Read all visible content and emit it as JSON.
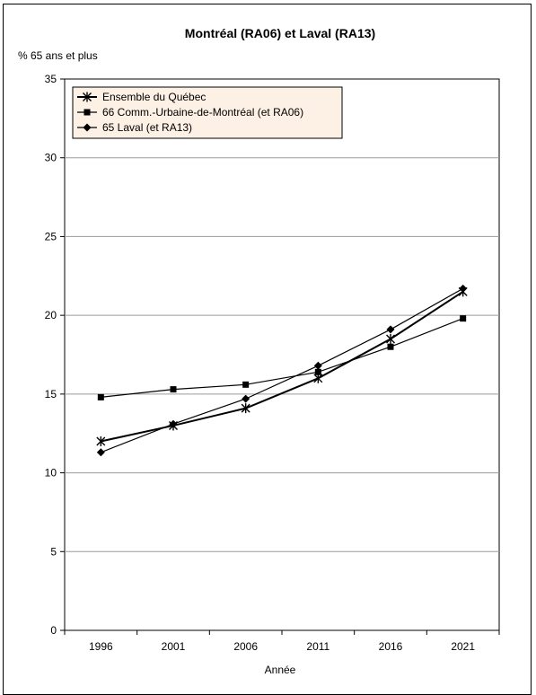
{
  "chart_data": {
    "type": "line",
    "title": "Montréal (RA06) et Laval (RA13)",
    "ylabel": "% 65 ans et plus",
    "xlabel": "Année",
    "categories": [
      "1996",
      "2001",
      "2006",
      "2011",
      "2016",
      "2021"
    ],
    "ylim": [
      0,
      35
    ],
    "yticks": [
      0,
      5,
      10,
      15,
      20,
      25,
      30,
      35
    ],
    "grid": true,
    "legend_position": "top-left",
    "series": [
      {
        "name": "Ensemble du Québec",
        "marker": "asterisk",
        "values": [
          12.0,
          13.0,
          14.1,
          16.0,
          18.5,
          21.5
        ]
      },
      {
        "name": "66 Comm.-Urbaine-de-Montréal (et RA06)",
        "marker": "square",
        "values": [
          14.8,
          15.3,
          15.6,
          16.4,
          18.0,
          19.8
        ]
      },
      {
        "name": "65 Laval (et RA13)",
        "marker": "diamond",
        "values": [
          11.3,
          13.1,
          14.7,
          16.8,
          19.1,
          21.7
        ]
      }
    ]
  },
  "colors": {
    "plot_background": "#ffffff",
    "legend_background": "#fdf0e4",
    "line": "#000000",
    "grid": "#9a9a9a"
  }
}
